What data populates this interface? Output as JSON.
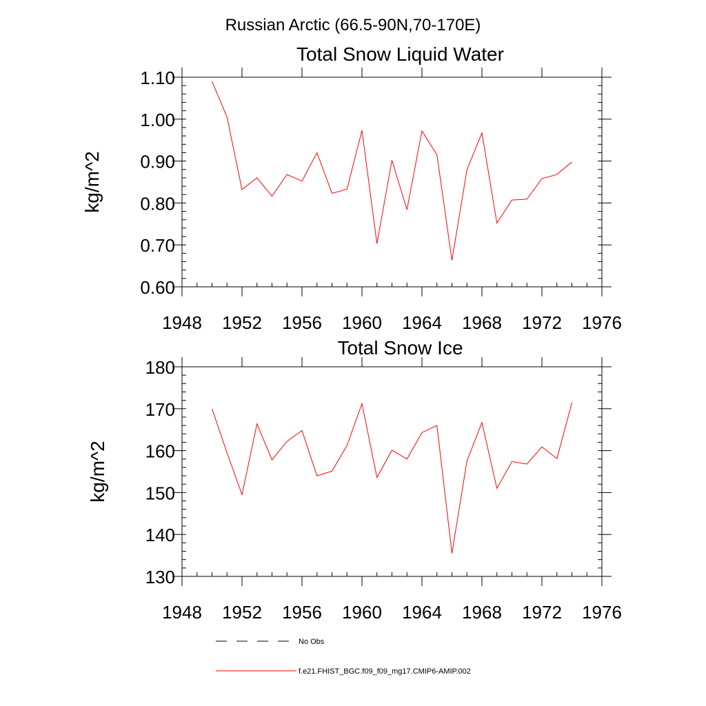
{
  "figure": {
    "title": "Russian Arctic (66.5-90N,70-170E)"
  },
  "chart_data": [
    {
      "type": "line",
      "title": "Total Snow Liquid Water",
      "xlabel": "",
      "ylabel": "kg/m^2",
      "xlim": [
        1948,
        1976
      ],
      "ylim": [
        0.6,
        1.1
      ],
      "x_ticks": [
        1948,
        1952,
        1956,
        1960,
        1964,
        1968,
        1972,
        1976
      ],
      "x_tick_labels": [
        "1948",
        "1952",
        "1956",
        "1960",
        "1964",
        "1968",
        "1972",
        "1976"
      ],
      "y_ticks": [
        0.6,
        0.7,
        0.8,
        0.9,
        1.0,
        1.1
      ],
      "y_tick_labels": [
        "0.60",
        "0.70",
        "0.80",
        "0.90",
        "1.00",
        "1.10"
      ],
      "grid": false,
      "series": [
        {
          "name": "f.e21.FHIST_BGC.f09_f09_mg17.CMIP6-AMIP.002",
          "color": "#ff0000",
          "x": [
            1950,
            1951,
            1952,
            1953,
            1954,
            1955,
            1956,
            1957,
            1958,
            1959,
            1960,
            1961,
            1962,
            1963,
            1964,
            1965,
            1966,
            1967,
            1968,
            1969,
            1970,
            1971,
            1972,
            1973,
            1974
          ],
          "values": [
            1.09,
            1.005,
            0.832,
            0.86,
            0.816,
            0.868,
            0.852,
            0.92,
            0.823,
            0.833,
            0.973,
            0.703,
            0.902,
            0.784,
            0.972,
            0.915,
            0.663,
            0.879,
            0.967,
            0.752,
            0.807,
            0.809,
            0.858,
            0.868,
            0.898
          ]
        }
      ]
    },
    {
      "type": "line",
      "title": "Total Snow Ice",
      "xlabel": "",
      "ylabel": "kg/m^2",
      "xlim": [
        1948,
        1976
      ],
      "ylim": [
        130,
        180
      ],
      "x_ticks": [
        1948,
        1952,
        1956,
        1960,
        1964,
        1968,
        1972,
        1976
      ],
      "x_tick_labels": [
        "1948",
        "1952",
        "1956",
        "1960",
        "1964",
        "1968",
        "1972",
        "1976"
      ],
      "y_ticks": [
        130,
        140,
        150,
        160,
        170,
        180
      ],
      "y_tick_labels": [
        "130",
        "140",
        "150",
        "160",
        "170",
        "180"
      ],
      "grid": false,
      "series": [
        {
          "name": "f.e21.FHIST_BGC.f09_f09_mg17.CMIP6-AMIP.002",
          "color": "#ff0000",
          "x": [
            1950,
            1951,
            1952,
            1953,
            1954,
            1955,
            1956,
            1957,
            1958,
            1959,
            1960,
            1961,
            1962,
            1963,
            1964,
            1965,
            1966,
            1967,
            1968,
            1969,
            1970,
            1971,
            1972,
            1973,
            1974
          ],
          "values": [
            170,
            159.5,
            149.5,
            166.4,
            157.8,
            162.2,
            164.8,
            154.0,
            155.1,
            161.2,
            171.2,
            153.6,
            160.1,
            158.0,
            164.3,
            166.0,
            135.5,
            157.5,
            166.7,
            151.0,
            157.4,
            156.8,
            160.9,
            158.1,
            171.4
          ]
        }
      ]
    }
  ],
  "legend": {
    "placement": "bottom",
    "items": [
      {
        "label": "No Obs",
        "style": "dashed",
        "color": "#000000"
      },
      {
        "label": "f.e21.FHIST_BGC.f09_f09_mg17.CMIP6-AMIP.002",
        "style": "solid",
        "color": "#ff0000"
      }
    ]
  }
}
